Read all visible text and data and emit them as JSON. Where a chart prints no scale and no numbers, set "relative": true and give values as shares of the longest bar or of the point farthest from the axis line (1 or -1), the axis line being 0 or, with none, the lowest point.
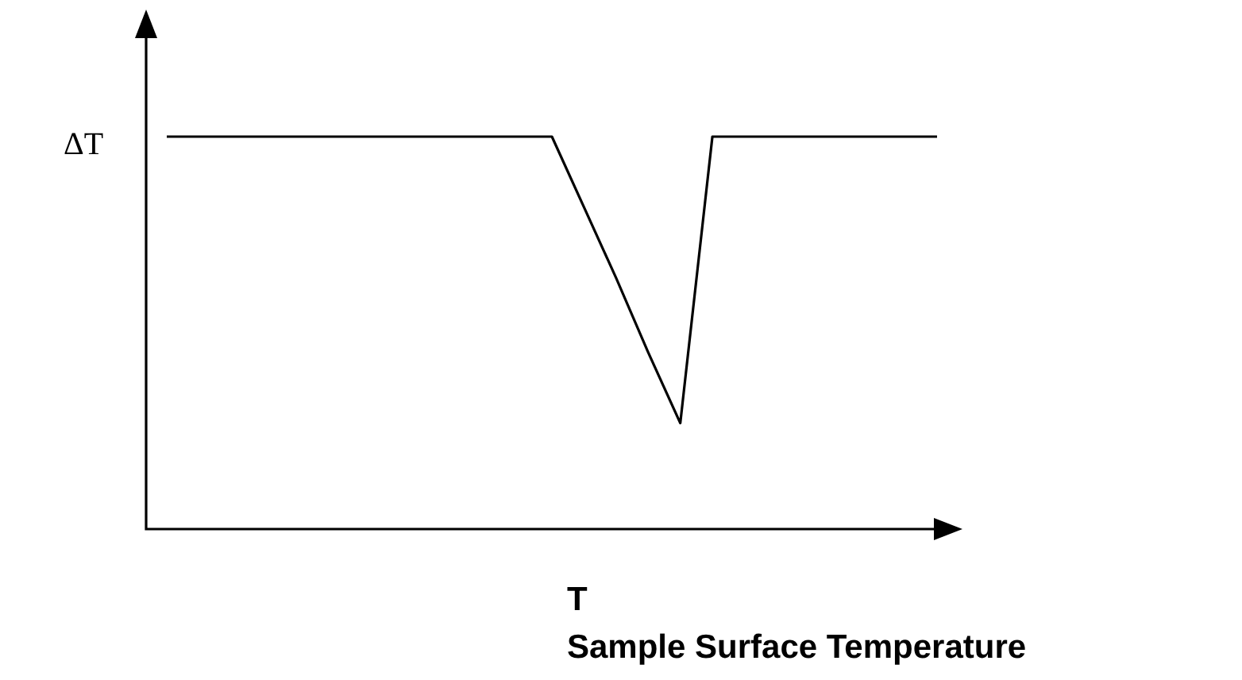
{
  "chart_data": {
    "type": "line",
    "relative": true,
    "ylabel": "ΔT",
    "xlabel": "T\nSample Surface Temperature",
    "categories": [
      null,
      null,
      null,
      null,
      null,
      null,
      null,
      null,
      null,
      null,
      null,
      null,
      null,
      null,
      null,
      null,
      null,
      null,
      null,
      null,
      null,
      null,
      null,
      null,
      null
    ],
    "series": [
      {
        "color": "#000000",
        "values": [
          1,
          1,
          1,
          1,
          1,
          1,
          1,
          1,
          1,
          1,
          1,
          1,
          1,
          0.82,
          0.64,
          0.45,
          0.27,
          1,
          1,
          1,
          1,
          1,
          1,
          1,
          1
        ]
      }
    ],
    "legend": false,
    "tick_labels": false,
    "marker": "none",
    "line_style": "solid"
  }
}
